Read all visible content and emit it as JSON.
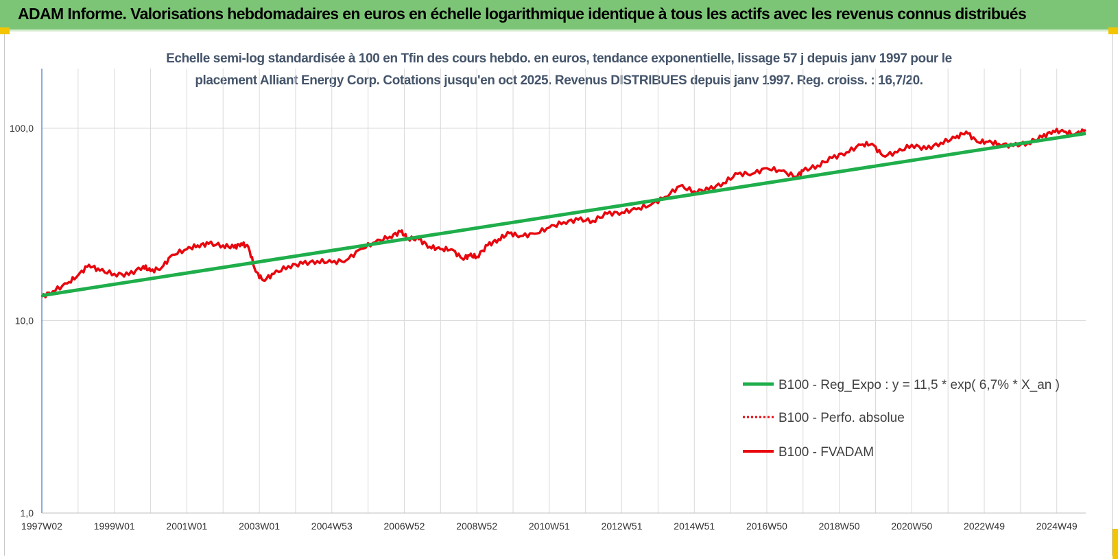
{
  "header": {
    "title": "ADAM Informe. Valorisations hebdomadaires en euros en échelle logarithmique identique à tous les actifs avec les revenus connus distribués"
  },
  "colors": {
    "banner": "#7cc576",
    "trend": "#1fae4b",
    "fvadam": "#e8070e",
    "perfo": "#e8070e",
    "grid": "#d9d9d9"
  },
  "chart_data": {
    "type": "line",
    "title_line1": "Echelle semi-log standardisée à 100 en Tfin des cours hebdo. en euros, tendance exponentielle, lissage 57 j depuis janv 1997 pour le",
    "title_line2": "placement Alliant Energy Corp. Cotations jusqu'en oct 2025. Revenus DISTRIBUES depuis janv 1997. Reg. croiss. : 16,7/20.",
    "y_scale": "log",
    "ylim": [
      1,
      200
    ],
    "y_tick_labels": [
      "1,0",
      "10,0",
      "100,0"
    ],
    "y_ticks": [
      1,
      10,
      100
    ],
    "xlim": [
      1997.0,
      2025.8
    ],
    "x_tick_labels": [
      "1997W02",
      "1999W01",
      "2001W01",
      "2003W01",
      "2004W53",
      "2006W52",
      "2008W52",
      "2010W51",
      "2012W51",
      "2014W51",
      "2016W50",
      "2018W50",
      "2020W50",
      "2022W49",
      "2024W49"
    ],
    "x_tick_years": [
      1997.0,
      1999.0,
      2001.0,
      2003.0,
      2005.0,
      2007.0,
      2009.0,
      2011.0,
      2013.0,
      2015.0,
      2017.0,
      2019.0,
      2021.0,
      2023.0,
      2025.0
    ],
    "grid": true,
    "legend_position": "bottom-right",
    "series": [
      {
        "name": "B100 - Reg_Expo : y = 11,5 * exp( 6,7% *  X_an )",
        "style": "solid-thick",
        "x": [
          1997.0,
          2025.8
        ],
        "y": [
          13.5,
          94
        ]
      },
      {
        "name": "B100 - Perfo. absolue",
        "style": "dotted",
        "x": [],
        "y": []
      },
      {
        "name": "B100 - FVADAM",
        "style": "solid",
        "x": [
          1997.0,
          1997.3,
          1997.7,
          1998.0,
          1998.3,
          1998.6,
          1999.0,
          1999.4,
          1999.8,
          2000.0,
          2000.3,
          2000.6,
          2001.0,
          2001.3,
          2001.6,
          2002.0,
          2002.3,
          2002.5,
          2002.7,
          2002.9,
          2003.1,
          2003.4,
          2003.8,
          2004.2,
          2004.6,
          2005.0,
          2005.4,
          2005.8,
          2006.2,
          2006.6,
          2006.9,
          2007.1,
          2007.4,
          2007.7,
          2008.0,
          2008.3,
          2008.6,
          2008.8,
          2009.0,
          2009.3,
          2009.6,
          2009.9,
          2010.2,
          2010.6,
          2011.0,
          2011.4,
          2011.8,
          2012.2,
          2012.6,
          2013.0,
          2013.4,
          2013.8,
          2014.2,
          2014.6,
          2015.0,
          2015.4,
          2015.8,
          2016.2,
          2016.6,
          2017.0,
          2017.4,
          2017.8,
          2018.0,
          2018.4,
          2018.8,
          2019.2,
          2019.6,
          2019.9,
          2020.2,
          2020.6,
          2021.0,
          2021.4,
          2021.8,
          2022.2,
          2022.5,
          2022.8,
          2023.1,
          2023.4,
          2023.8,
          2024.2,
          2024.6,
          2024.9,
          2025.2,
          2025.5,
          2025.8
        ],
        "y": [
          13.3,
          14.2,
          15.6,
          17.2,
          19.5,
          18.2,
          17.5,
          17.3,
          19.2,
          18.1,
          18.8,
          22,
          23.5,
          24.6,
          25.1,
          24.6,
          24,
          25.2,
          24.1,
          18,
          16.2,
          17.5,
          19.2,
          19.8,
          20.4,
          20.1,
          20.6,
          23.6,
          25.6,
          27.3,
          29,
          26.8,
          26.5,
          24.2,
          23.5,
          23.5,
          21,
          21.8,
          21.5,
          24.6,
          26.5,
          28.5,
          27.5,
          28.3,
          30.5,
          32.5,
          33.5,
          33,
          36,
          36.5,
          38,
          40,
          44,
          50,
          47,
          48,
          52,
          58,
          58,
          62,
          60,
          56,
          60,
          64,
          70,
          75,
          82,
          83,
          72,
          75,
          82,
          78,
          84,
          89,
          96,
          85,
          85,
          83,
          81,
          84,
          90,
          97,
          96,
          93,
          98
        ]
      }
    ]
  }
}
